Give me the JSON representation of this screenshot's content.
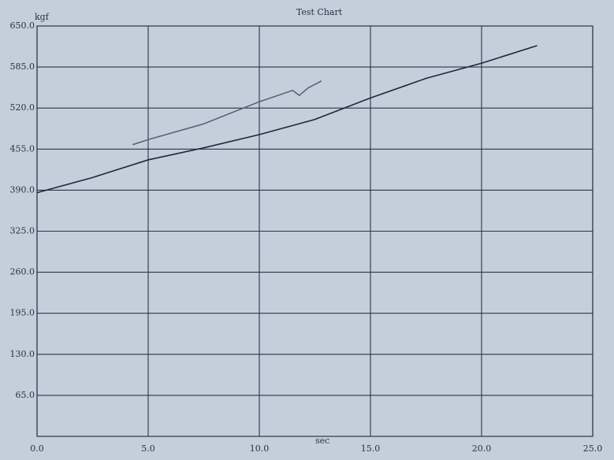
{
  "chart_data": {
    "type": "line",
    "title": "Test Chart",
    "y_label": "kgf",
    "x_label": "sec",
    "xlim": [
      0,
      25
    ],
    "ylim": [
      0,
      650
    ],
    "xticks": [
      {
        "value": 0,
        "label": "0.0"
      },
      {
        "value": 5,
        "label": "5.0"
      },
      {
        "value": 10,
        "label": "10.0"
      },
      {
        "value": 15,
        "label": "15.0"
      },
      {
        "value": 20,
        "label": "20.0"
      },
      {
        "value": 25,
        "label": "25.0"
      }
    ],
    "yticks": [
      {
        "value": 65,
        "label": "65.0"
      },
      {
        "value": 130,
        "label": "130.0"
      },
      {
        "value": 195,
        "label": "195.0"
      },
      {
        "value": 260,
        "label": "260.0"
      },
      {
        "value": 325,
        "label": "325.0"
      },
      {
        "value": 390,
        "label": "390.0"
      },
      {
        "value": 455,
        "label": "455.0"
      },
      {
        "value": 520,
        "label": "520.0"
      },
      {
        "value": 585,
        "label": "585.0"
      },
      {
        "value": 650,
        "label": "650.0"
      }
    ],
    "grid": true,
    "series": [
      {
        "color": "#1f2738",
        "x": [
          0,
          2.5,
          5,
          7.5,
          10,
          12.5,
          15,
          17.5,
          20,
          22.5
        ],
        "values": [
          386,
          410,
          438,
          457,
          478,
          502,
          536,
          567,
          591,
          619
        ]
      },
      {
        "color": "#5a6478",
        "x": [
          4.3,
          5,
          7.5,
          10,
          11.5,
          11.8,
          12.2,
          12.8
        ],
        "values": [
          462,
          470,
          495,
          530,
          548,
          540,
          552,
          563
        ]
      }
    ]
  }
}
